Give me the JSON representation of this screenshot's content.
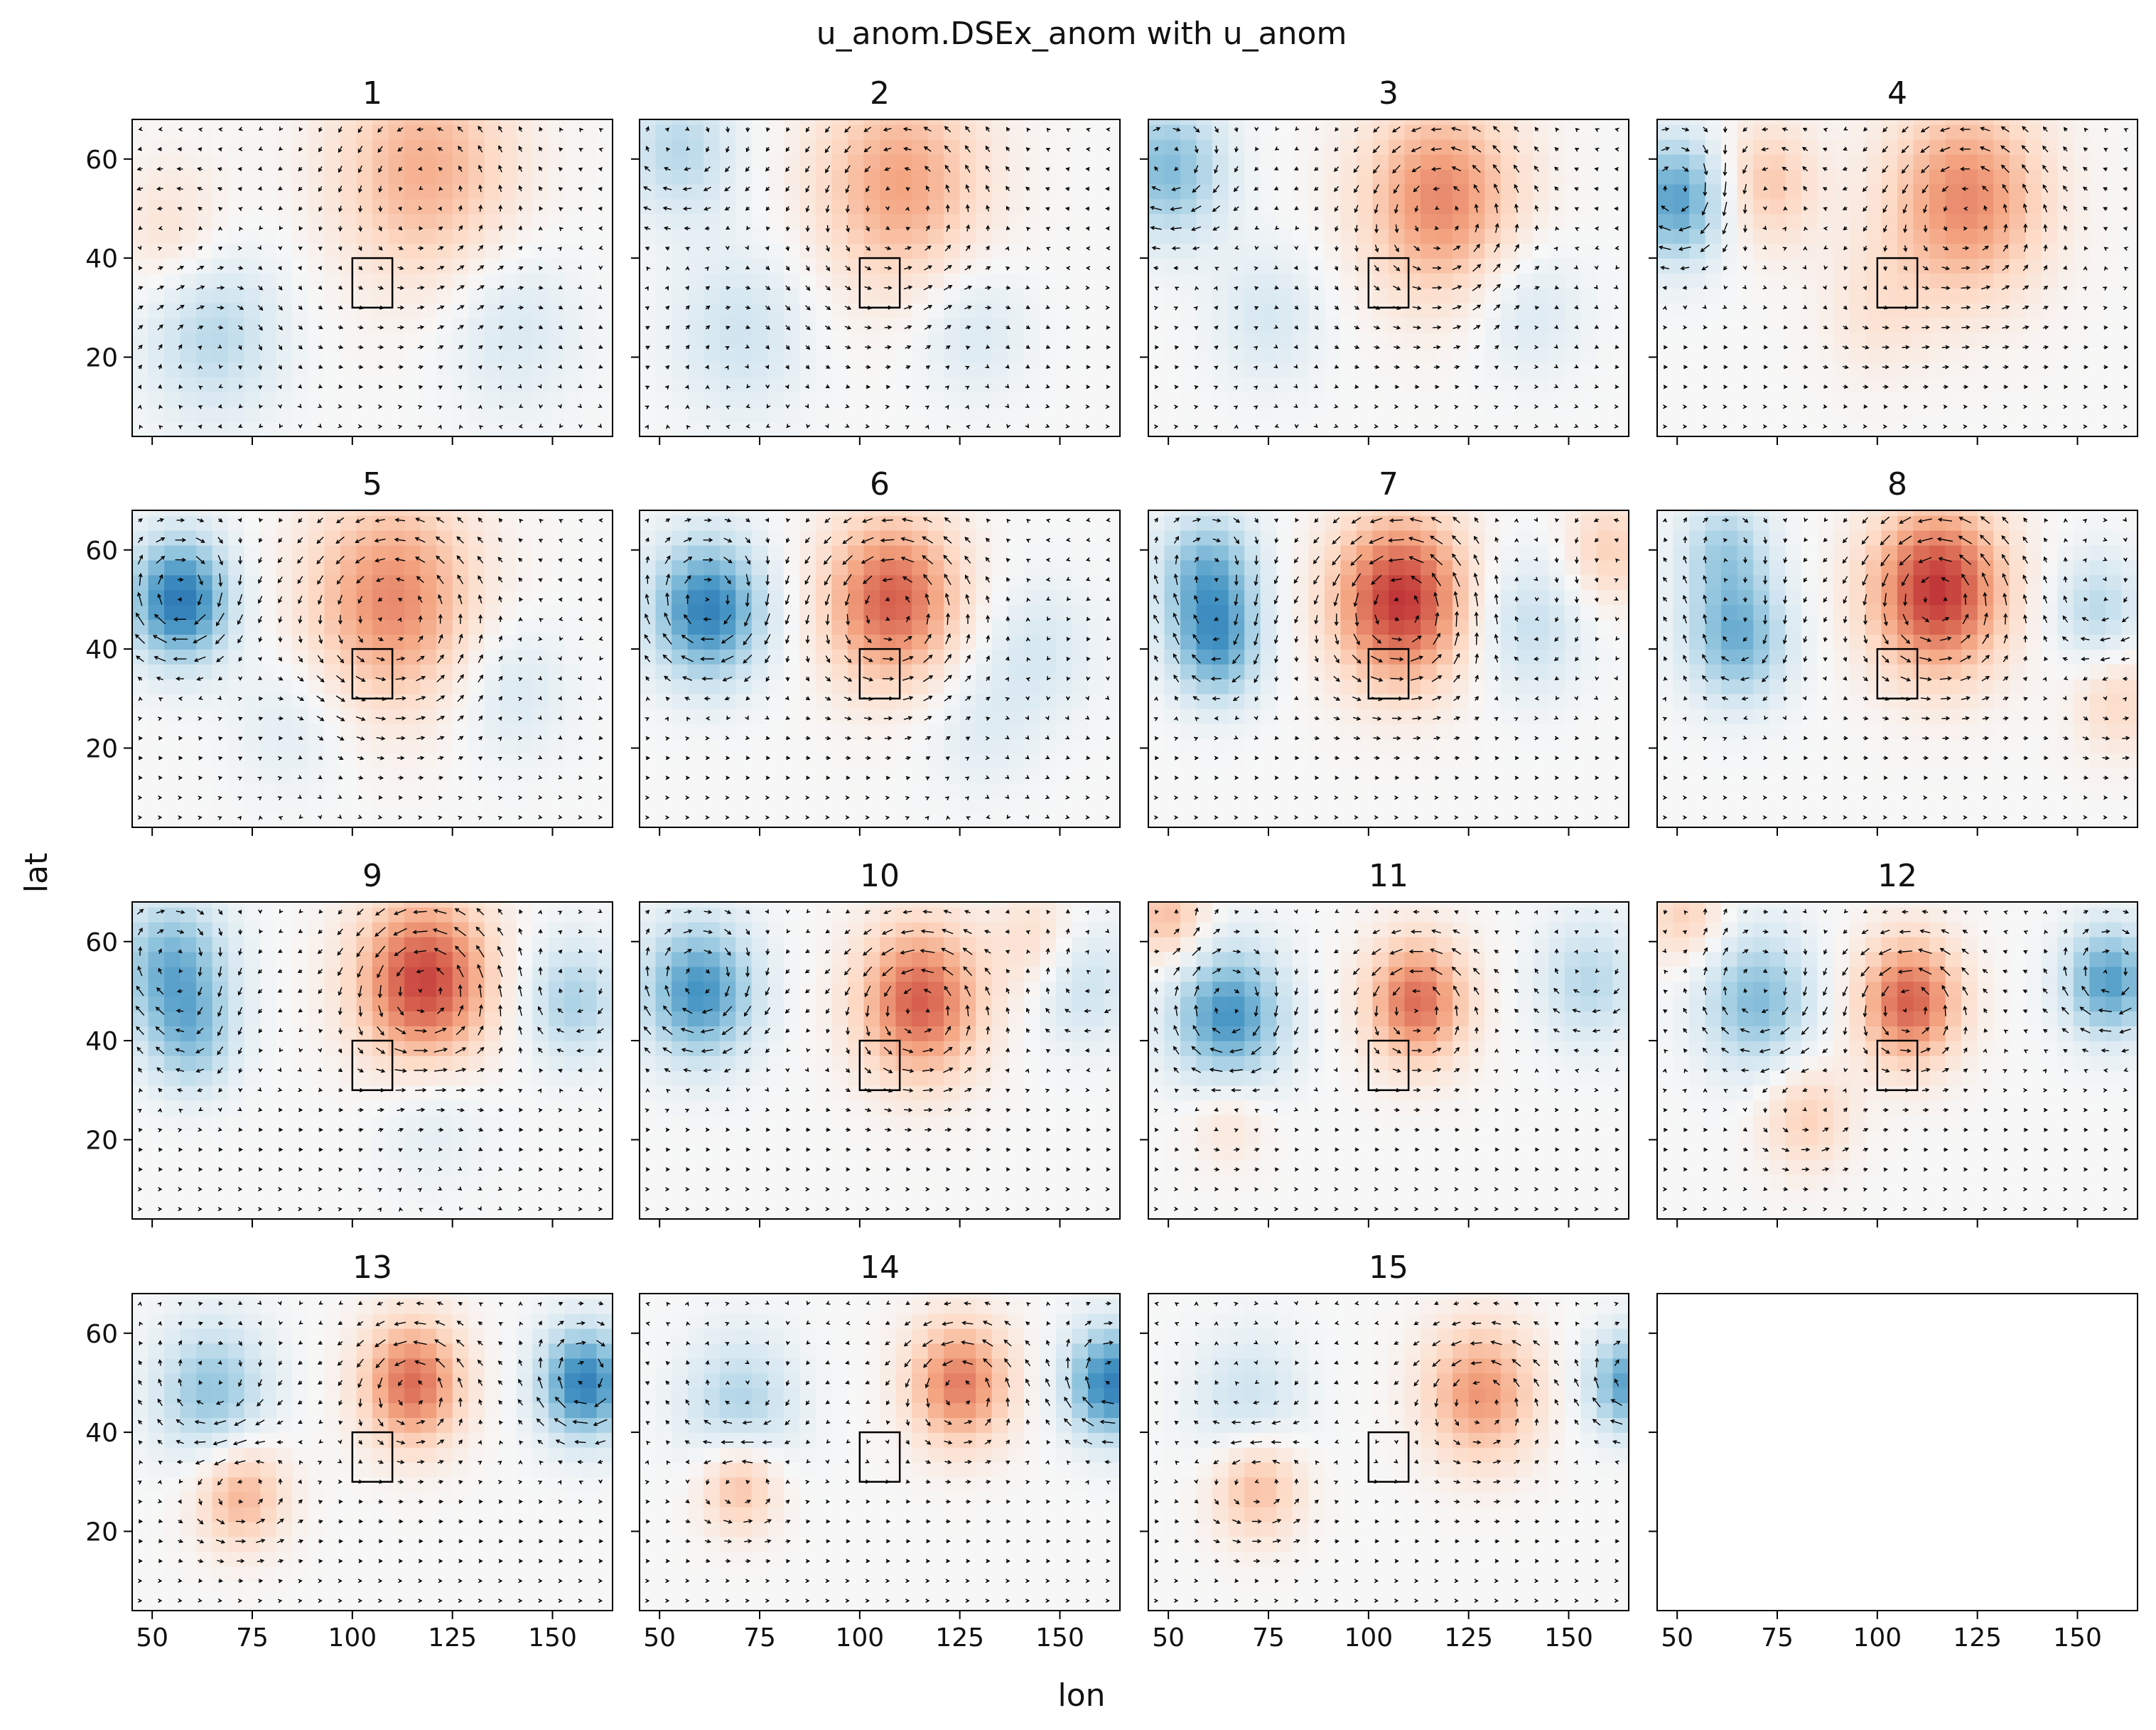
{
  "figure": {
    "title": "u_anom.DSEx_anom with u_anom",
    "xlabel": "lon",
    "ylabel": "lat"
  },
  "chart_data": {
    "type": "heatmap",
    "title": "u_anom.DSEx_anom with u_anom",
    "xlabel": "lon",
    "ylabel": "lat",
    "xlim": [
      45,
      165
    ],
    "ylim": [
      4,
      68
    ],
    "xticks": [
      50,
      75,
      100,
      125,
      150
    ],
    "yticks": [
      20,
      40,
      60
    ],
    "colormap": [
      "#2166ac",
      "#4393c3",
      "#92c5de",
      "#d1e5f0",
      "#f7f7f7",
      "#fddbc7",
      "#f4a582",
      "#d6604d",
      "#b2182b"
    ],
    "box": {
      "lon": [
        100,
        110
      ],
      "lat": [
        30,
        40
      ]
    },
    "overlay": "vector field of u_anom (quiver arrows)",
    "panels": [
      {
        "label": "1",
        "features": [
          {
            "lon": 118,
            "lat": 58,
            "amp": 0.45,
            "r": 16
          },
          {
            "lon": 65,
            "lat": 25,
            "amp": -0.35,
            "r": 12
          },
          {
            "lon": 140,
            "lat": 26,
            "amp": -0.2,
            "r": 12
          },
          {
            "lon": 55,
            "lat": 45,
            "amp": 0.2,
            "r": 10
          }
        ]
      },
      {
        "label": "2",
        "features": [
          {
            "lon": 110,
            "lat": 55,
            "amp": 0.5,
            "r": 15
          },
          {
            "lon": 55,
            "lat": 62,
            "amp": -0.35,
            "r": 10
          },
          {
            "lon": 70,
            "lat": 25,
            "amp": -0.25,
            "r": 12
          },
          {
            "lon": 128,
            "lat": 26,
            "amp": -0.2,
            "r": 10
          }
        ]
      },
      {
        "label": "3",
        "features": [
          {
            "lon": 118,
            "lat": 52,
            "amp": 0.6,
            "r": 14
          },
          {
            "lon": 50,
            "lat": 58,
            "amp": -0.55,
            "r": 10
          },
          {
            "lon": 140,
            "lat": 30,
            "amp": -0.2,
            "r": 10
          },
          {
            "lon": 75,
            "lat": 28,
            "amp": -0.2,
            "r": 10
          }
        ]
      },
      {
        "label": "4",
        "features": [
          {
            "lon": 122,
            "lat": 52,
            "amp": 0.6,
            "r": 14
          },
          {
            "lon": 50,
            "lat": 52,
            "amp": -0.7,
            "r": 9
          },
          {
            "lon": 72,
            "lat": 55,
            "amp": 0.35,
            "r": 9
          },
          {
            "lon": 100,
            "lat": 30,
            "amp": 0.15,
            "r": 10
          }
        ]
      },
      {
        "label": "5",
        "features": [
          {
            "lon": 57,
            "lat": 50,
            "amp": -0.9,
            "r": 9
          },
          {
            "lon": 110,
            "lat": 50,
            "amp": 0.6,
            "r": 15
          },
          {
            "lon": 140,
            "lat": 32,
            "amp": -0.2,
            "r": 10
          },
          {
            "lon": 85,
            "lat": 25,
            "amp": -0.15,
            "r": 10
          }
        ]
      },
      {
        "label": "6",
        "features": [
          {
            "lon": 62,
            "lat": 48,
            "amp": -0.85,
            "r": 10
          },
          {
            "lon": 108,
            "lat": 50,
            "amp": 0.75,
            "r": 12
          },
          {
            "lon": 145,
            "lat": 40,
            "amp": -0.2,
            "r": 10
          },
          {
            "lon": 130,
            "lat": 25,
            "amp": -0.15,
            "r": 10
          }
        ]
      },
      {
        "label": "7",
        "features": [
          {
            "lon": 60,
            "lat": 55,
            "amp": -0.6,
            "r": 9
          },
          {
            "lon": 62,
            "lat": 40,
            "amp": -0.6,
            "r": 8
          },
          {
            "lon": 108,
            "lat": 50,
            "amp": 0.9,
            "r": 12
          },
          {
            "lon": 140,
            "lat": 45,
            "amp": -0.3,
            "r": 10
          },
          {
            "lon": 160,
            "lat": 60,
            "amp": 0.3,
            "r": 8
          }
        ]
      },
      {
        "label": "8",
        "features": [
          {
            "lon": 65,
            "lat": 42,
            "amp": -0.6,
            "r": 9
          },
          {
            "lon": 62,
            "lat": 60,
            "amp": -0.4,
            "r": 8
          },
          {
            "lon": 115,
            "lat": 52,
            "amp": 0.9,
            "r": 12
          },
          {
            "lon": 155,
            "lat": 48,
            "amp": -0.35,
            "r": 8
          },
          {
            "lon": 160,
            "lat": 30,
            "amp": 0.25,
            "r": 8
          }
        ]
      },
      {
        "label": "9",
        "features": [
          {
            "lon": 55,
            "lat": 55,
            "amp": -0.6,
            "r": 10
          },
          {
            "lon": 60,
            "lat": 40,
            "amp": -0.4,
            "r": 8
          },
          {
            "lon": 118,
            "lat": 52,
            "amp": 0.85,
            "r": 12
          },
          {
            "lon": 155,
            "lat": 48,
            "amp": -0.4,
            "r": 9
          },
          {
            "lon": 120,
            "lat": 25,
            "amp": -0.15,
            "r": 10
          }
        ]
      },
      {
        "label": "10",
        "features": [
          {
            "lon": 60,
            "lat": 50,
            "amp": -0.75,
            "r": 10
          },
          {
            "lon": 115,
            "lat": 48,
            "amp": 0.75,
            "r": 11
          },
          {
            "lon": 155,
            "lat": 52,
            "amp": -0.3,
            "r": 9
          },
          {
            "lon": 145,
            "lat": 60,
            "amp": 0.25,
            "r": 8
          }
        ]
      },
      {
        "label": "11",
        "features": [
          {
            "lon": 65,
            "lat": 45,
            "amp": -0.75,
            "r": 10
          },
          {
            "lon": 112,
            "lat": 48,
            "amp": 0.7,
            "r": 9
          },
          {
            "lon": 155,
            "lat": 52,
            "amp": -0.35,
            "r": 9
          },
          {
            "lon": 50,
            "lat": 65,
            "amp": 0.4,
            "r": 7
          },
          {
            "lon": 65,
            "lat": 25,
            "amp": 0.2,
            "r": 7
          }
        ]
      },
      {
        "label": "12",
        "features": [
          {
            "lon": 70,
            "lat": 48,
            "amp": -0.55,
            "r": 10
          },
          {
            "lon": 108,
            "lat": 48,
            "amp": 0.75,
            "r": 9
          },
          {
            "lon": 158,
            "lat": 52,
            "amp": -0.7,
            "r": 8
          },
          {
            "lon": 82,
            "lat": 25,
            "amp": 0.3,
            "r": 8
          },
          {
            "lon": 52,
            "lat": 65,
            "amp": 0.3,
            "r": 7
          }
        ]
      },
      {
        "label": "13",
        "features": [
          {
            "lon": 65,
            "lat": 48,
            "amp": -0.5,
            "r": 10
          },
          {
            "lon": 115,
            "lat": 50,
            "amp": 0.7,
            "r": 9
          },
          {
            "lon": 158,
            "lat": 50,
            "amp": -0.85,
            "r": 8
          },
          {
            "lon": 72,
            "lat": 28,
            "amp": 0.45,
            "r": 8
          }
        ]
      },
      {
        "label": "14",
        "features": [
          {
            "lon": 70,
            "lat": 45,
            "amp": -0.4,
            "r": 10
          },
          {
            "lon": 125,
            "lat": 50,
            "amp": 0.65,
            "r": 9
          },
          {
            "lon": 163,
            "lat": 50,
            "amp": -0.85,
            "r": 8
          },
          {
            "lon": 70,
            "lat": 30,
            "amp": 0.45,
            "r": 7
          }
        ]
      },
      {
        "label": "15",
        "features": [
          {
            "lon": 70,
            "lat": 45,
            "amp": -0.3,
            "r": 10
          },
          {
            "lon": 128,
            "lat": 48,
            "amp": 0.55,
            "r": 10
          },
          {
            "lon": 165,
            "lat": 50,
            "amp": -0.7,
            "r": 7
          },
          {
            "lon": 72,
            "lat": 30,
            "amp": 0.45,
            "r": 8
          }
        ]
      },
      {
        "label": "",
        "empty": true
      }
    ]
  }
}
